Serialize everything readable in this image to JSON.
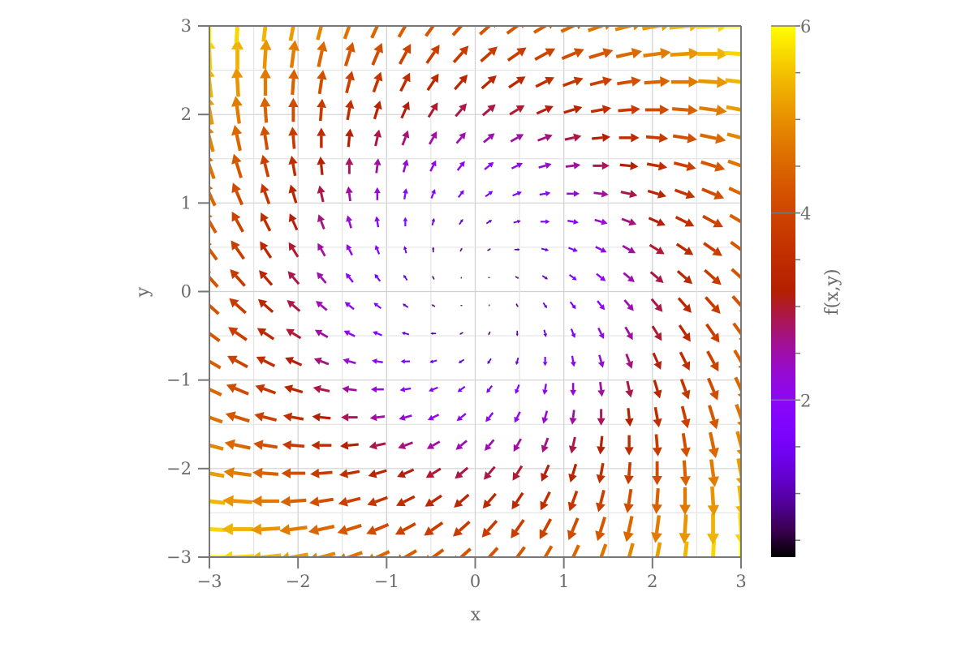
{
  "chart_data": {
    "type": "quiver",
    "xlabel": "x",
    "ylabel": "y",
    "xlim": [
      -3,
      3
    ],
    "ylim": [
      -3,
      3
    ],
    "grid": true,
    "xticks": [
      "−3",
      "−2",
      "−1",
      "0",
      "1",
      "2",
      "3"
    ],
    "yticks": [
      "−3",
      "−2",
      "−1",
      "0",
      "1",
      "2",
      "3"
    ],
    "xtick_values": [
      -3,
      -2,
      -1,
      0,
      1,
      2,
      3
    ],
    "ytick_values": [
      -3,
      -2,
      -1,
      0,
      1,
      2,
      3
    ],
    "colorbar": {
      "label": "f(x,y)",
      "range": [
        0.32,
        6
      ],
      "colormap": "gnuplot",
      "ticks": [
        "2",
        "4",
        "6"
      ],
      "tick_values": [
        2,
        4,
        6
      ]
    },
    "x": [
      -3,
      -2.684,
      -2.368,
      -2.053,
      -1.737,
      -1.421,
      -1.105,
      -0.789,
      -0.474,
      -0.158,
      0.158,
      0.474,
      0.789,
      1.105,
      1.421,
      1.737,
      2.053,
      2.368,
      2.684,
      3
    ],
    "y": [
      -3,
      -2.684,
      -2.368,
      -2.053,
      -1.737,
      -1.421,
      -1.105,
      -0.789,
      -0.474,
      -0.158,
      0.158,
      0.474,
      0.789,
      1.105,
      1.421,
      1.737,
      2.053,
      2.368,
      2.684,
      3
    ],
    "u": [
      [
        -6,
        -5.68,
        -5.37,
        -5.05,
        -4.74,
        -4.42,
        -4.11,
        -3.79,
        -3.47,
        -3.16,
        -2.84,
        -2.53,
        -2.21,
        -1.89,
        -1.58,
        -1.26,
        -0.95,
        -0.63,
        -0.32,
        0
      ],
      [
        -5.68,
        -5.37,
        -5.05,
        -4.74,
        -4.42,
        -4.11,
        -3.79,
        -3.47,
        -3.16,
        -2.84,
        -2.53,
        -2.21,
        -1.89,
        -1.58,
        -1.26,
        -0.95,
        -0.63,
        -0.32,
        0,
        0.32
      ],
      [
        -5.37,
        -5.05,
        -4.74,
        -4.42,
        -4.11,
        -3.79,
        -3.47,
        -3.16,
        -2.84,
        -2.53,
        -2.21,
        -1.89,
        -1.58,
        -1.26,
        -0.95,
        -0.63,
        -0.32,
        0,
        0.32,
        0.63
      ],
      [
        -5.05,
        -4.74,
        -4.42,
        -4.11,
        -3.79,
        -3.47,
        -3.16,
        -2.84,
        -2.53,
        -2.21,
        -1.89,
        -1.58,
        -1.26,
        -0.95,
        -0.63,
        -0.32,
        0,
        0.32,
        0.63,
        0.95
      ],
      [
        -4.74,
        -4.42,
        -4.11,
        -3.79,
        -3.47,
        -3.16,
        -2.84,
        -2.53,
        -2.21,
        -1.89,
        -1.58,
        -1.26,
        -0.95,
        -0.63,
        -0.32,
        0,
        0.32,
        0.63,
        0.95,
        1.26
      ],
      [
        -4.42,
        -4.11,
        -3.79,
        -3.47,
        -3.16,
        -2.84,
        -2.53,
        -2.21,
        -1.89,
        -1.58,
        -1.26,
        -0.95,
        -0.63,
        -0.32,
        0,
        0.32,
        0.63,
        0.95,
        1.26,
        1.58
      ],
      [
        -4.11,
        -3.79,
        -3.47,
        -3.16,
        -2.84,
        -2.53,
        -2.21,
        -1.89,
        -1.58,
        -1.26,
        -0.95,
        -0.63,
        -0.32,
        0,
        0.32,
        0.63,
        0.95,
        1.26,
        1.58,
        1.89
      ],
      [
        -3.79,
        -3.47,
        -3.16,
        -2.84,
        -2.53,
        -2.21,
        -1.89,
        -1.58,
        -1.26,
        -0.95,
        -0.63,
        -0.32,
        0,
        0.32,
        0.63,
        0.95,
        1.26,
        1.58,
        1.89,
        2.21
      ],
      [
        -3.47,
        -3.16,
        -2.84,
        -2.53,
        -2.21,
        -1.89,
        -1.58,
        -1.26,
        -0.95,
        -0.63,
        -0.32,
        0,
        0.32,
        0.63,
        0.95,
        1.26,
        1.58,
        1.89,
        2.21,
        2.53
      ],
      [
        -3.16,
        -2.84,
        -2.53,
        -2.21,
        -1.89,
        -1.58,
        -1.26,
        -0.95,
        -0.63,
        -0.32,
        0,
        0.32,
        0.63,
        0.95,
        1.26,
        1.58,
        1.89,
        2.21,
        2.53,
        2.84
      ],
      [
        -2.84,
        -2.53,
        -2.21,
        -1.89,
        -1.58,
        -1.26,
        -0.95,
        -0.63,
        -0.32,
        0,
        0.32,
        0.63,
        0.95,
        1.26,
        1.58,
        1.89,
        2.21,
        2.53,
        2.84,
        3.16
      ],
      [
        -2.53,
        -2.21,
        -1.89,
        -1.58,
        -1.26,
        -0.95,
        -0.63,
        -0.32,
        0,
        0.32,
        0.63,
        0.95,
        1.26,
        1.58,
        1.89,
        2.21,
        2.53,
        2.84,
        3.16,
        3.47
      ],
      [
        -2.21,
        -1.89,
        -1.58,
        -1.26,
        -0.95,
        -0.63,
        -0.32,
        0,
        0.32,
        0.63,
        0.95,
        1.26,
        1.58,
        1.89,
        2.21,
        2.53,
        2.84,
        3.16,
        3.47,
        3.79
      ],
      [
        -1.89,
        -1.58,
        -1.26,
        -0.95,
        -0.63,
        -0.32,
        0,
        0.32,
        0.63,
        0.95,
        1.26,
        1.58,
        1.89,
        2.21,
        2.53,
        2.84,
        3.16,
        3.47,
        3.79,
        4.11
      ],
      [
        -1.58,
        -1.26,
        -0.95,
        -0.63,
        -0.32,
        0,
        0.32,
        0.63,
        0.95,
        1.26,
        1.58,
        1.89,
        2.21,
        2.53,
        2.84,
        3.16,
        3.47,
        3.79,
        4.11,
        4.42
      ],
      [
        -1.26,
        -0.95,
        -0.63,
        -0.32,
        0,
        0.32,
        0.63,
        0.95,
        1.26,
        1.58,
        1.89,
        2.21,
        2.53,
        2.84,
        3.16,
        3.47,
        3.79,
        4.11,
        4.42,
        4.74
      ],
      [
        -0.95,
        -0.63,
        -0.32,
        0,
        0.32,
        0.63,
        0.95,
        1.26,
        1.58,
        1.89,
        2.21,
        2.53,
        2.84,
        3.16,
        3.47,
        3.79,
        4.11,
        4.42,
        4.74,
        5.05
      ],
      [
        -0.63,
        -0.32,
        0,
        0.32,
        0.63,
        0.95,
        1.26,
        1.58,
        1.89,
        2.21,
        2.53,
        2.84,
        3.16,
        3.47,
        3.79,
        4.11,
        4.42,
        4.74,
        5.05,
        5.37
      ],
      [
        -0.32,
        0,
        0.32,
        0.63,
        0.95,
        1.26,
        1.58,
        1.89,
        2.21,
        2.53,
        2.84,
        3.16,
        3.47,
        3.79,
        4.11,
        4.42,
        4.74,
        5.05,
        5.37,
        5.68
      ],
      [
        0,
        0.32,
        0.63,
        0.95,
        1.26,
        1.58,
        1.89,
        2.21,
        2.53,
        2.84,
        3.16,
        3.47,
        3.79,
        4.11,
        4.42,
        4.74,
        5.05,
        5.37,
        5.68,
        6
      ]
    ],
    "v": [
      [
        0,
        -0.32,
        -0.63,
        -0.95,
        -1.26,
        -1.58,
        -1.89,
        -2.21,
        -2.53,
        -2.84,
        -3.16,
        -3.47,
        -3.79,
        -4.11,
        -4.42,
        -4.74,
        -5.05,
        -5.37,
        -5.68,
        -6
      ],
      [
        0.32,
        0,
        -0.32,
        -0.63,
        -0.95,
        -1.26,
        -1.58,
        -1.89,
        -2.21,
        -2.53,
        -2.84,
        -3.16,
        -3.47,
        -3.79,
        -4.11,
        -4.42,
        -4.74,
        -5.05,
        -5.37,
        -5.68
      ],
      [
        0.63,
        0.32,
        0,
        -0.32,
        -0.63,
        -0.95,
        -1.26,
        -1.58,
        -1.89,
        -2.21,
        -2.53,
        -2.84,
        -3.16,
        -3.47,
        -3.79,
        -4.11,
        -4.42,
        -4.74,
        -5.05,
        -5.37
      ],
      [
        0.95,
        0.63,
        0.32,
        0,
        -0.32,
        -0.63,
        -0.95,
        -1.26,
        -1.58,
        -1.89,
        -2.21,
        -2.53,
        -2.84,
        -3.16,
        -3.47,
        -3.79,
        -4.11,
        -4.42,
        -4.74,
        -5.05
      ],
      [
        1.26,
        0.95,
        0.63,
        0.32,
        0,
        -0.32,
        -0.63,
        -0.95,
        -1.26,
        -1.58,
        -1.89,
        -2.21,
        -2.53,
        -2.84,
        -3.16,
        -3.47,
        -3.79,
        -4.11,
        -4.42,
        -4.74
      ],
      [
        1.58,
        1.26,
        0.95,
        0.63,
        0.32,
        0,
        -0.32,
        -0.63,
        -0.95,
        -1.26,
        -1.58,
        -1.89,
        -2.21,
        -2.53,
        -2.84,
        -3.16,
        -3.47,
        -3.79,
        -4.11,
        -4.42
      ],
      [
        1.89,
        1.58,
        1.26,
        0.95,
        0.63,
        0.32,
        0,
        -0.32,
        -0.63,
        -0.95,
        -1.26,
        -1.58,
        -1.89,
        -2.21,
        -2.53,
        -2.84,
        -3.16,
        -3.47,
        -3.79,
        -4.11
      ],
      [
        2.21,
        1.89,
        1.58,
        1.26,
        0.95,
        0.63,
        0.32,
        0,
        -0.32,
        -0.63,
        -0.95,
        -1.26,
        -1.58,
        -1.89,
        -2.21,
        -2.53,
        -2.84,
        -3.16,
        -3.47,
        -3.79
      ],
      [
        2.53,
        2.21,
        1.89,
        1.58,
        1.26,
        0.95,
        0.63,
        0.32,
        0,
        -0.32,
        -0.63,
        -0.95,
        -1.26,
        -1.58,
        -1.89,
        -2.21,
        -2.53,
        -2.84,
        -3.16,
        -3.47
      ],
      [
        2.84,
        2.53,
        2.21,
        1.89,
        1.58,
        1.26,
        0.95,
        0.63,
        0.32,
        0,
        -0.32,
        -0.63,
        -0.95,
        -1.26,
        -1.58,
        -1.89,
        -2.21,
        -2.53,
        -2.84,
        -3.16
      ],
      [
        3.16,
        2.84,
        2.53,
        2.21,
        1.89,
        1.58,
        1.26,
        0.95,
        0.63,
        0.32,
        0,
        -0.32,
        -0.63,
        -0.95,
        -1.26,
        -1.58,
        -1.89,
        -2.21,
        -2.53,
        -2.84
      ],
      [
        3.47,
        3.16,
        2.84,
        2.53,
        2.21,
        1.89,
        1.58,
        1.26,
        0.95,
        0.63,
        0.32,
        0,
        -0.32,
        -0.63,
        -0.95,
        -1.26,
        -1.58,
        -1.89,
        -2.21,
        -2.53
      ],
      [
        3.79,
        3.47,
        3.16,
        2.84,
        2.53,
        2.21,
        1.89,
        1.58,
        1.26,
        0.95,
        0.63,
        0.32,
        0,
        -0.32,
        -0.63,
        -0.95,
        -1.26,
        -1.58,
        -1.89,
        -2.21
      ],
      [
        4.11,
        3.79,
        3.47,
        3.16,
        2.84,
        2.53,
        2.21,
        1.89,
        1.58,
        1.26,
        0.95,
        0.63,
        0.32,
        0,
        -0.32,
        -0.63,
        -0.95,
        -1.26,
        -1.58,
        -1.89
      ],
      [
        4.42,
        4.11,
        3.79,
        3.47,
        3.16,
        2.84,
        2.53,
        2.21,
        1.89,
        1.58,
        1.26,
        0.95,
        0.63,
        0.32,
        0,
        -0.32,
        -0.63,
        -0.95,
        -1.26,
        -1.58
      ],
      [
        4.74,
        4.42,
        4.11,
        3.79,
        3.47,
        3.16,
        2.84,
        2.53,
        2.21,
        1.89,
        1.58,
        1.26,
        0.95,
        0.63,
        0.32,
        0,
        -0.32,
        -0.63,
        -0.95,
        -1.26
      ],
      [
        5.05,
        4.74,
        4.42,
        4.11,
        3.79,
        3.47,
        3.16,
        2.84,
        2.53,
        2.21,
        1.89,
        1.58,
        1.26,
        0.95,
        0.63,
        0.32,
        0,
        -0.32,
        -0.63,
        -0.95
      ],
      [
        5.37,
        5.05,
        4.74,
        4.42,
        4.11,
        3.79,
        3.47,
        3.16,
        2.84,
        2.53,
        2.21,
        1.89,
        1.58,
        1.26,
        0.95,
        0.63,
        0.32,
        0,
        -0.32,
        -0.63
      ],
      [
        5.68,
        5.37,
        5.05,
        4.74,
        4.42,
        4.11,
        3.79,
        3.47,
        3.16,
        2.84,
        2.53,
        2.21,
        1.89,
        1.58,
        1.26,
        0.95,
        0.63,
        0.32,
        0,
        -0.32
      ],
      [
        6,
        5.68,
        5.37,
        5.05,
        4.74,
        4.42,
        4.11,
        3.79,
        3.47,
        3.16,
        2.84,
        2.53,
        2.21,
        1.89,
        1.58,
        1.26,
        0.95,
        0.63,
        0.32,
        0
      ]
    ]
  }
}
